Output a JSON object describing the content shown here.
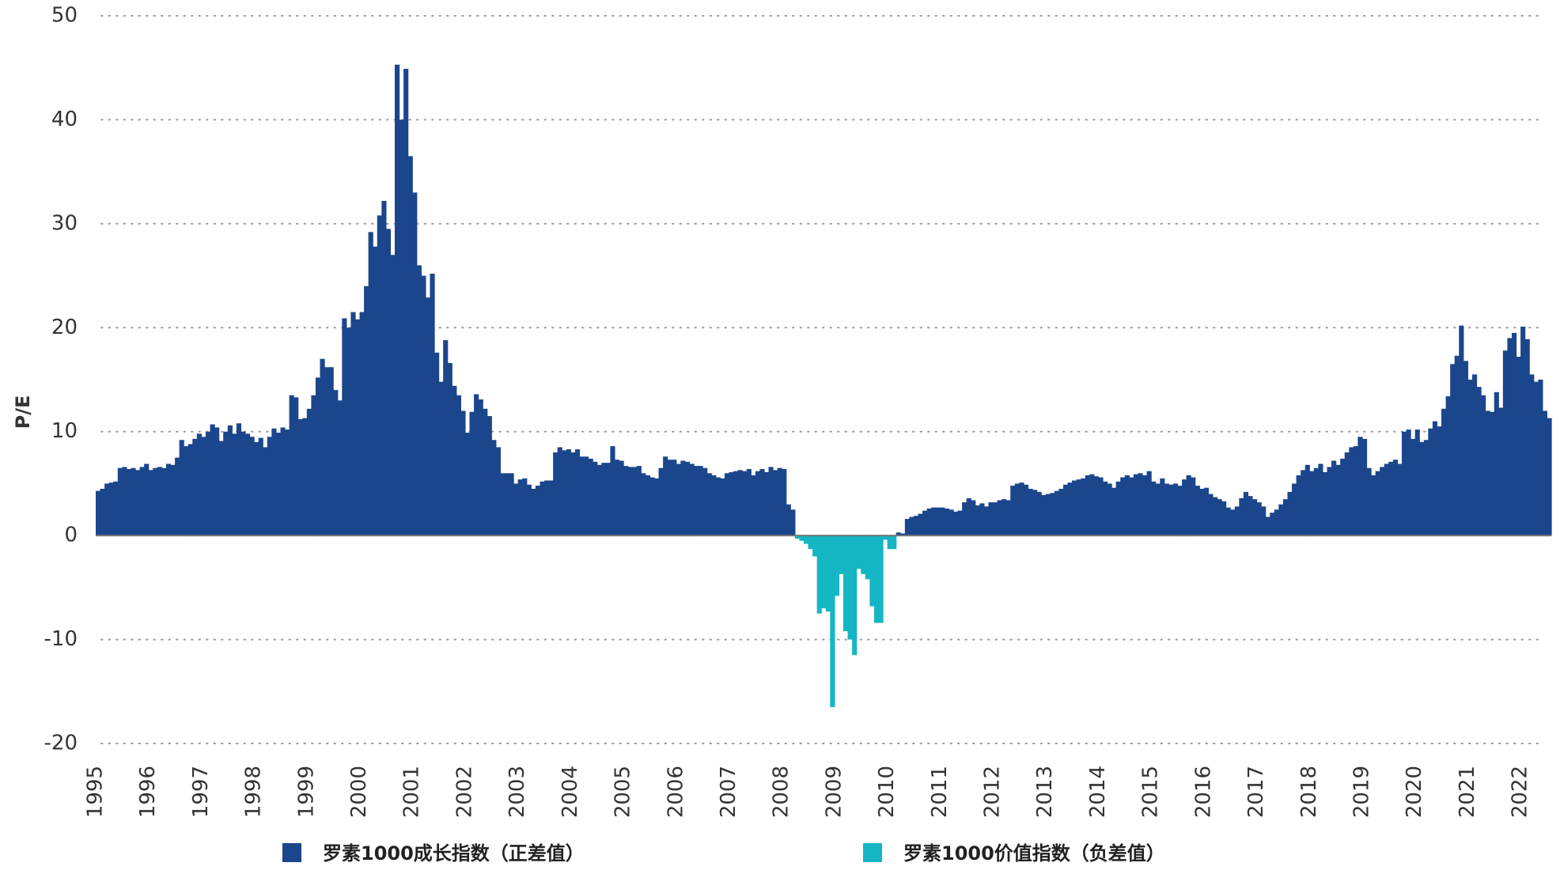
{
  "chart_data": {
    "type": "bar",
    "y_label": "P/E",
    "ylim": [
      -20,
      50
    ],
    "yticks": [
      50,
      40,
      30,
      20,
      10,
      0,
      -10,
      -20
    ],
    "grid": true,
    "legend": "bottom",
    "categories": [
      "1995",
      null,
      null,
      null,
      null,
      null,
      null,
      null,
      null,
      null,
      null,
      null,
      "1996",
      null,
      null,
      null,
      null,
      null,
      null,
      null,
      null,
      null,
      null,
      null,
      "1997",
      null,
      null,
      null,
      null,
      null,
      null,
      null,
      null,
      null,
      null,
      null,
      "1998",
      null,
      null,
      null,
      null,
      null,
      null,
      null,
      null,
      null,
      null,
      null,
      "1999",
      null,
      null,
      null,
      null,
      null,
      null,
      null,
      null,
      null,
      null,
      null,
      "2000",
      null,
      null,
      null,
      null,
      null,
      null,
      null,
      null,
      null,
      null,
      null,
      "2001",
      null,
      null,
      null,
      null,
      null,
      null,
      null,
      null,
      null,
      null,
      null,
      "2002",
      null,
      null,
      null,
      null,
      null,
      null,
      null,
      null,
      null,
      null,
      null,
      "2003",
      null,
      null,
      null,
      null,
      null,
      null,
      null,
      null,
      null,
      null,
      null,
      "2004",
      null,
      null,
      null,
      null,
      null,
      null,
      null,
      null,
      null,
      null,
      null,
      "2005",
      null,
      null,
      null,
      null,
      null,
      null,
      null,
      null,
      null,
      null,
      null,
      "2006",
      null,
      null,
      null,
      null,
      null,
      null,
      null,
      null,
      null,
      null,
      null,
      "2007",
      null,
      null,
      null,
      null,
      null,
      null,
      null,
      null,
      null,
      null,
      null,
      "2008",
      null,
      null,
      null,
      null,
      null,
      null,
      null,
      null,
      null,
      null,
      null,
      "2009",
      null,
      null,
      null,
      null,
      null,
      null,
      null,
      null,
      null,
      null,
      null,
      "2010",
      null,
      null,
      null,
      null,
      null,
      null,
      null,
      null,
      null,
      null,
      null,
      "2011",
      null,
      null,
      null,
      null,
      null,
      null,
      null,
      null,
      null,
      null,
      null,
      "2012",
      null,
      null,
      null,
      null,
      null,
      null,
      null,
      null,
      null,
      null,
      null,
      "2013",
      null,
      null,
      null,
      null,
      null,
      null,
      null,
      null,
      null,
      null,
      null,
      "2014",
      null,
      null,
      null,
      null,
      null,
      null,
      null,
      null,
      null,
      null,
      null,
      "2015",
      null,
      null,
      null,
      null,
      null,
      null,
      null,
      null,
      null,
      null,
      null,
      "2016",
      null,
      null,
      null,
      null,
      null,
      null,
      null,
      null,
      null,
      null,
      null,
      "2017",
      null,
      null,
      null,
      null,
      null,
      null,
      null,
      null,
      null,
      null,
      null,
      "2018",
      null,
      null,
      null,
      null,
      null,
      null,
      null,
      null,
      null,
      null,
      null,
      "2019",
      null,
      null,
      null,
      null,
      null,
      null,
      null,
      null,
      null,
      null,
      null,
      "2020",
      null,
      null,
      null,
      null,
      null,
      null,
      null,
      null,
      null,
      null,
      null,
      "2021",
      null,
      null,
      null,
      null,
      null,
      null,
      null,
      null,
      null,
      null,
      null,
      "2022",
      null,
      null,
      null,
      null,
      null,
      null
    ],
    "series": [
      {
        "name": "罗素1000成长指数（正差值）",
        "color": "#1b468c",
        "values": [
          4.3,
          4.5,
          5,
          5.1,
          5.2,
          6.5,
          6.6,
          6.4,
          6.5,
          6.3,
          6.6,
          6.9,
          6.3,
          6.5,
          6.6,
          6.5,
          6.9,
          6.8,
          7.5,
          9.2,
          8.6,
          8.8,
          9.3,
          9.8,
          9.5,
          10,
          10.7,
          10.4,
          9.1,
          10,
          10.6,
          9.8,
          10.8,
          10,
          9.8,
          9.5,
          9,
          9.4,
          8.5,
          9.5,
          10.3,
          9.9,
          10.4,
          10.2,
          13.5,
          13.3,
          11.2,
          11.3,
          12.2,
          13.5,
          15.2,
          17,
          16.2,
          16.2,
          14,
          13,
          20.9,
          20,
          21.5,
          20.8,
          21.5,
          24,
          29.2,
          27.8,
          30.8,
          32.2,
          29.5,
          27,
          45.3,
          40,
          44.9,
          36.5,
          33,
          26,
          25,
          22.9,
          25.2,
          17.6,
          14.8,
          18.8,
          16.6,
          14.4,
          13.5,
          12,
          9.9,
          11.9,
          13.6,
          13.1,
          12.2,
          11.5,
          9.2,
          8.5,
          6,
          6,
          6,
          5,
          5.4,
          5.5,
          4.9,
          4.5,
          4.8,
          5.2,
          5.3,
          5.3,
          8,
          8.5,
          8.2,
          8.3,
          8,
          8.3,
          7.6,
          7.6,
          7.4,
          7.1,
          6.8,
          7,
          7,
          8.6,
          7.3,
          7.2,
          6.7,
          6.6,
          6.6,
          6.7,
          6,
          5.8,
          5.6,
          5.5,
          6.5,
          7.6,
          7.3,
          7.3,
          6.9,
          7.2,
          7.1,
          6.9,
          6.7,
          6.7,
          6.5,
          6,
          5.8,
          5.6,
          5.5,
          6,
          6.1,
          6.2,
          6.3,
          6.2,
          6.4,
          5.8,
          6.2,
          6.4,
          6.1,
          6.6,
          6.3,
          6.5,
          6.4,
          3,
          2.5,
          null,
          null,
          null,
          null,
          null,
          null,
          null,
          null,
          null,
          null,
          null,
          null,
          null,
          null,
          null,
          null,
          null,
          null,
          null,
          null,
          null,
          null,
          null,
          0.3,
          0.2,
          1.6,
          1.8,
          1.9,
          2.1,
          2.4,
          2.6,
          2.7,
          2.7,
          2.7,
          2.6,
          2.5,
          2.3,
          2.4,
          3.2,
          3.6,
          3.4,
          2.9,
          3.1,
          2.8,
          3.2,
          3.2,
          3.4,
          3.5,
          3.4,
          4.8,
          5,
          5.1,
          4.9,
          4.5,
          4.4,
          4.2,
          3.9,
          4,
          4.1,
          4.3,
          4.5,
          4.9,
          5.1,
          5.3,
          5.4,
          5.5,
          5.8,
          5.9,
          5.7,
          5.6,
          5.2,
          5,
          4.6,
          5.2,
          5.6,
          5.8,
          5.6,
          5.9,
          6,
          5.8,
          6.2,
          5.2,
          5,
          5.5,
          5,
          4.9,
          5,
          4.8,
          5.4,
          5.8,
          5.6,
          4.8,
          4.5,
          4.6,
          4,
          3.7,
          3.5,
          3.3,
          2.7,
          2.5,
          2.8,
          3.6,
          4.2,
          3.8,
          3.5,
          3.2,
          2.8,
          1.8,
          2.2,
          2.5,
          3,
          3.5,
          4.2,
          5,
          5.8,
          6.3,
          6.8,
          6.2,
          6.5,
          6.9,
          6.1,
          6.6,
          7.2,
          6.8,
          7.4,
          8,
          8.5,
          8.6,
          9.5,
          9.3,
          6.5,
          5.8,
          6.2,
          6.6,
          6.9,
          7.1,
          7.3,
          6.9,
          10,
          10.2,
          9.3,
          10.2,
          9,
          9.2,
          10.3,
          11,
          10.5,
          12.2,
          13.4,
          16.5,
          17.3,
          20.2,
          16.8,
          15,
          15.5,
          14.3,
          13.5,
          12,
          11.9,
          13.8,
          12.3,
          17.8,
          19,
          19.5,
          17.2,
          20.1,
          18.9,
          15.5,
          14.8,
          15,
          12,
          11.3
        ]
      },
      {
        "name": "罗素1000价值指数（负差值）",
        "color": "#15b6c4",
        "values": [
          null,
          null,
          null,
          null,
          null,
          null,
          null,
          null,
          null,
          null,
          null,
          null,
          null,
          null,
          null,
          null,
          null,
          null,
          null,
          null,
          null,
          null,
          null,
          null,
          null,
          null,
          null,
          null,
          null,
          null,
          null,
          null,
          null,
          null,
          null,
          null,
          null,
          null,
          null,
          null,
          null,
          null,
          null,
          null,
          null,
          null,
          null,
          null,
          null,
          null,
          null,
          null,
          null,
          null,
          null,
          null,
          null,
          null,
          null,
          null,
          null,
          null,
          null,
          null,
          null,
          null,
          null,
          null,
          null,
          null,
          null,
          null,
          null,
          null,
          null,
          null,
          null,
          null,
          null,
          null,
          null,
          null,
          null,
          null,
          null,
          null,
          null,
          null,
          null,
          null,
          null,
          null,
          null,
          null,
          null,
          null,
          null,
          null,
          null,
          null,
          null,
          null,
          null,
          null,
          null,
          null,
          null,
          null,
          null,
          null,
          null,
          null,
          null,
          null,
          null,
          null,
          null,
          null,
          null,
          null,
          null,
          null,
          null,
          null,
          null,
          null,
          null,
          null,
          null,
          null,
          null,
          null,
          null,
          null,
          null,
          null,
          null,
          null,
          null,
          null,
          null,
          null,
          null,
          null,
          null,
          null,
          null,
          null,
          null,
          null,
          null,
          null,
          null,
          null,
          null,
          null,
          null,
          null,
          null,
          -0.3,
          -0.5,
          -0.8,
          -1.3,
          -2,
          -7.5,
          -7,
          -7.3,
          -16.5,
          -5.8,
          -3.7,
          -9.2,
          -10,
          -11.5,
          -3.2,
          -3.7,
          -4.2,
          -6.8,
          -8.4,
          -8.4,
          -0.4,
          -1.3,
          -1.3,
          null,
          null,
          null,
          null,
          null,
          null,
          null,
          null,
          null,
          null,
          null,
          null,
          null,
          null,
          null,
          null,
          null,
          null,
          null,
          null,
          null,
          null,
          null,
          null,
          null,
          null,
          null,
          null,
          null,
          null,
          null,
          null,
          null,
          null,
          null,
          null,
          null,
          null,
          null,
          null,
          null,
          null,
          null,
          null,
          null,
          null,
          null,
          null,
          null,
          null,
          null,
          null,
          null,
          null,
          null,
          null,
          null,
          null,
          null,
          null,
          null,
          null,
          null,
          null,
          null,
          null,
          null,
          null,
          null,
          null,
          null,
          null,
          null,
          null,
          null,
          null,
          null,
          null,
          null,
          null,
          null,
          null,
          null,
          null,
          null,
          null,
          null,
          null,
          null,
          null,
          null,
          null,
          null,
          null,
          null,
          null,
          null,
          null,
          null,
          null,
          null,
          null,
          null,
          null,
          null,
          null,
          null,
          null,
          null,
          null,
          null,
          null,
          null,
          null,
          null,
          null,
          null,
          null,
          null,
          null,
          null,
          null,
          null,
          null,
          null,
          null,
          null,
          null,
          null,
          null,
          null,
          null,
          null,
          null,
          null,
          null,
          null,
          null,
          null,
          null,
          null,
          null,
          null,
          null,
          null,
          null,
          null,
          null,
          null
        ]
      }
    ]
  }
}
